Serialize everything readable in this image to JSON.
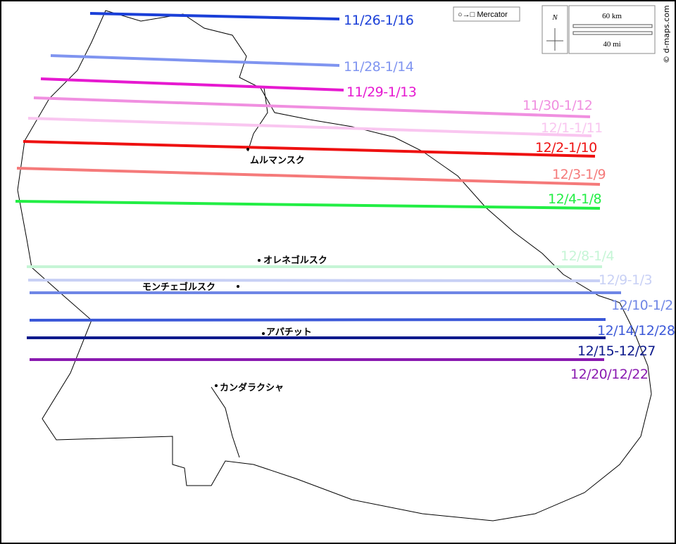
{
  "lines": [
    {
      "label": "11/26-1/16",
      "color": "#1a3fd8"
    },
    {
      "label": "11/28-1/14",
      "color": "#7f94f0"
    },
    {
      "label": "11/29-1/13",
      "color": "#e619d0"
    },
    {
      "label": "11/30-1/12",
      "color": "#f08fe0"
    },
    {
      "label": "12/1-1/11",
      "color": "#f9c6f0"
    },
    {
      "label": "12/2-1/10",
      "color": "#ee1111"
    },
    {
      "label": "12/3-1/9",
      "color": "#f57a7a"
    },
    {
      "label": "12/4-1/8",
      "color": "#22ee44"
    },
    {
      "label": "12/8-1/4",
      "color": "#c6f5d6"
    },
    {
      "label": "12/9-1/3",
      "color": "#c8d0f5"
    },
    {
      "label": "12/10-1/2",
      "color": "#6f86e6"
    },
    {
      "label": "12/14/12/28",
      "color": "#3b58d8"
    },
    {
      "label": "12/15-12/27",
      "color": "#0d1a8c"
    },
    {
      "label": "12/20/12/22",
      "color": "#8a1ab0"
    }
  ],
  "cities": [
    {
      "name": "ムルマンスク"
    },
    {
      "name": "オレネゴルスク"
    },
    {
      "name": "モンチェゴルスク"
    },
    {
      "name": "アパチット"
    },
    {
      "name": "カンダラクシャ"
    }
  ],
  "projection": "Mercator",
  "compass": "N",
  "scale": {
    "km": "60 km",
    "mi": "40 mi"
  },
  "credit": "© d-maps.com"
}
